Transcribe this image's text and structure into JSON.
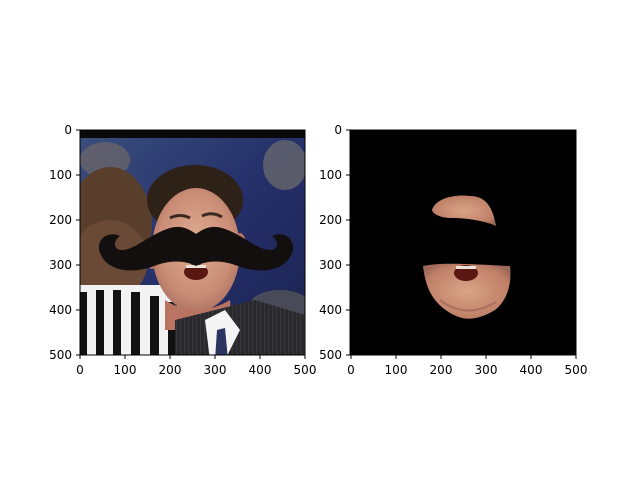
{
  "figure": {
    "background": "#ffffff",
    "panels": [
      {
        "name": "left",
        "image_description": "photo with mustache overlay",
        "x_ticks": [
          "0",
          "100",
          "200",
          "300",
          "400",
          "500"
        ],
        "y_ticks": [
          "0",
          "100",
          "200",
          "300",
          "400",
          "500"
        ],
        "xlim": [
          0,
          500
        ],
        "ylim": [
          500,
          0
        ]
      },
      {
        "name": "right",
        "image_description": "masked face region on black background",
        "x_ticks": [
          "0",
          "100",
          "200",
          "300",
          "400",
          "500"
        ],
        "y_ticks": [
          "0",
          "100",
          "200",
          "300",
          "400",
          "500"
        ],
        "xlim": [
          0,
          500
        ],
        "ylim": [
          500,
          0
        ]
      }
    ],
    "colors": {
      "mustache": "#140f0f",
      "mask_bg": "#000000",
      "skin": "#d79f86",
      "skin_shadow": "#b97462",
      "mouth": "#5a1610",
      "stripe_white": "#f2f2f2",
      "stripe_black": "#111111",
      "bg_blue": "#28356b"
    }
  }
}
